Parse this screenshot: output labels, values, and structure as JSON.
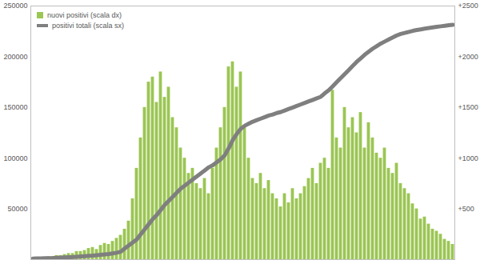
{
  "chart_data": {
    "type": "bar",
    "x": [
      1,
      2,
      3,
      4,
      5,
      6,
      7,
      8,
      9,
      10,
      11,
      12,
      13,
      14,
      15,
      16,
      17,
      18,
      19,
      20,
      21,
      22,
      23,
      24,
      25,
      26,
      27,
      28,
      29,
      30,
      31,
      32,
      33,
      34,
      35,
      36,
      37,
      38,
      39,
      40,
      41,
      42,
      43,
      44,
      45,
      46,
      47,
      48,
      49,
      50,
      51,
      52,
      53,
      54,
      55,
      56,
      57,
      58,
      59,
      60,
      61,
      62,
      63,
      64,
      65,
      66,
      67,
      68,
      69,
      70,
      71,
      72,
      73,
      74,
      75,
      76,
      77,
      78,
      79,
      80,
      81,
      82,
      83,
      84,
      85,
      86,
      87,
      88,
      89,
      90,
      91,
      92,
      93,
      94,
      95,
      96,
      97,
      98,
      99,
      100,
      101,
      102,
      103,
      104,
      105,
      106
    ],
    "xlim": [
      1,
      107
    ],
    "ylim": [
      0,
      250000
    ],
    "yticks": [
      50000,
      100000,
      150000,
      200000,
      250000
    ],
    "y2lim": [
      0,
      2500
    ],
    "y2ticks": [
      {
        "value": 500,
        "label": "+500"
      },
      {
        "value": 1000,
        "label": "+1000"
      },
      {
        "value": 1500,
        "label": "+1500"
      },
      {
        "value": 2000,
        "label": "+2000"
      },
      {
        "value": 2500,
        "label": "+2500"
      }
    ],
    "tick_labels": "y",
    "grid": false,
    "legend": "top-left",
    "series": [
      {
        "name": "nuovi positivi (scala dx)",
        "type": "bar",
        "axis": "y2",
        "color": "#9bc653",
        "values": [
          10,
          10,
          20,
          20,
          30,
          30,
          40,
          40,
          50,
          60,
          60,
          80,
          80,
          90,
          110,
          120,
          100,
          140,
          160,
          150,
          180,
          210,
          240,
          300,
          380,
          600,
          900,
          1200,
          1500,
          1750,
          1800,
          1550,
          1850,
          1600,
          1700,
          1400,
          1300,
          1100,
          1000,
          850,
          900,
          750,
          700,
          800,
          650,
          900,
          1100,
          1300,
          1500,
          1900,
          1950,
          1700,
          1850,
          1300,
          1000,
          800,
          750,
          850,
          700,
          780,
          650,
          600,
          520,
          650,
          560,
          700,
          600,
          650,
          720,
          800,
          900,
          750,
          950,
          1000,
          900,
          1670,
          1200,
          1100,
          1500,
          1300,
          1400,
          1250,
          1450,
          1100,
          1350,
          1200,
          1050,
          1000,
          1100,
          900,
          850,
          950,
          750,
          700,
          650,
          550,
          500,
          400,
          420,
          350,
          300,
          280,
          250,
          200,
          180,
          150
        ]
      },
      {
        "name": "positivi totali (scala sx)",
        "type": "line",
        "color": "#7f7f7f",
        "values": [
          1000,
          1100,
          1200,
          1300,
          1400,
          1500,
          1700,
          1900,
          2100,
          2300,
          2500,
          2800,
          3100,
          3400,
          3700,
          4000,
          4400,
          4800,
          5200,
          5600,
          6100,
          6800,
          7800,
          11000,
          14000,
          17000,
          20000,
          25000,
          30000,
          35000,
          40000,
          44000,
          49000,
          54000,
          58000,
          62000,
          66000,
          70000,
          73000,
          76000,
          79000,
          82000,
          85000,
          88000,
          91000,
          93000,
          96000,
          99000,
          103000,
          110000,
          118000,
          124000,
          129000,
          132000,
          134000,
          136000,
          137500,
          139000,
          140500,
          142000,
          143000,
          144500,
          145500,
          147000,
          148500,
          150000,
          151500,
          153000,
          154500,
          156000,
          157500,
          159000,
          160500,
          164000,
          167000,
          171000,
          175000,
          179000,
          183000,
          187000,
          191000,
          195000,
          198500,
          202000,
          205000,
          208000,
          210500,
          213000,
          215000,
          217000,
          219000,
          221000,
          222500,
          223500,
          224500,
          225500,
          226300,
          227000,
          227700,
          228300,
          228900,
          229500,
          230000,
          230500,
          231000,
          231500
        ]
      }
    ]
  }
}
